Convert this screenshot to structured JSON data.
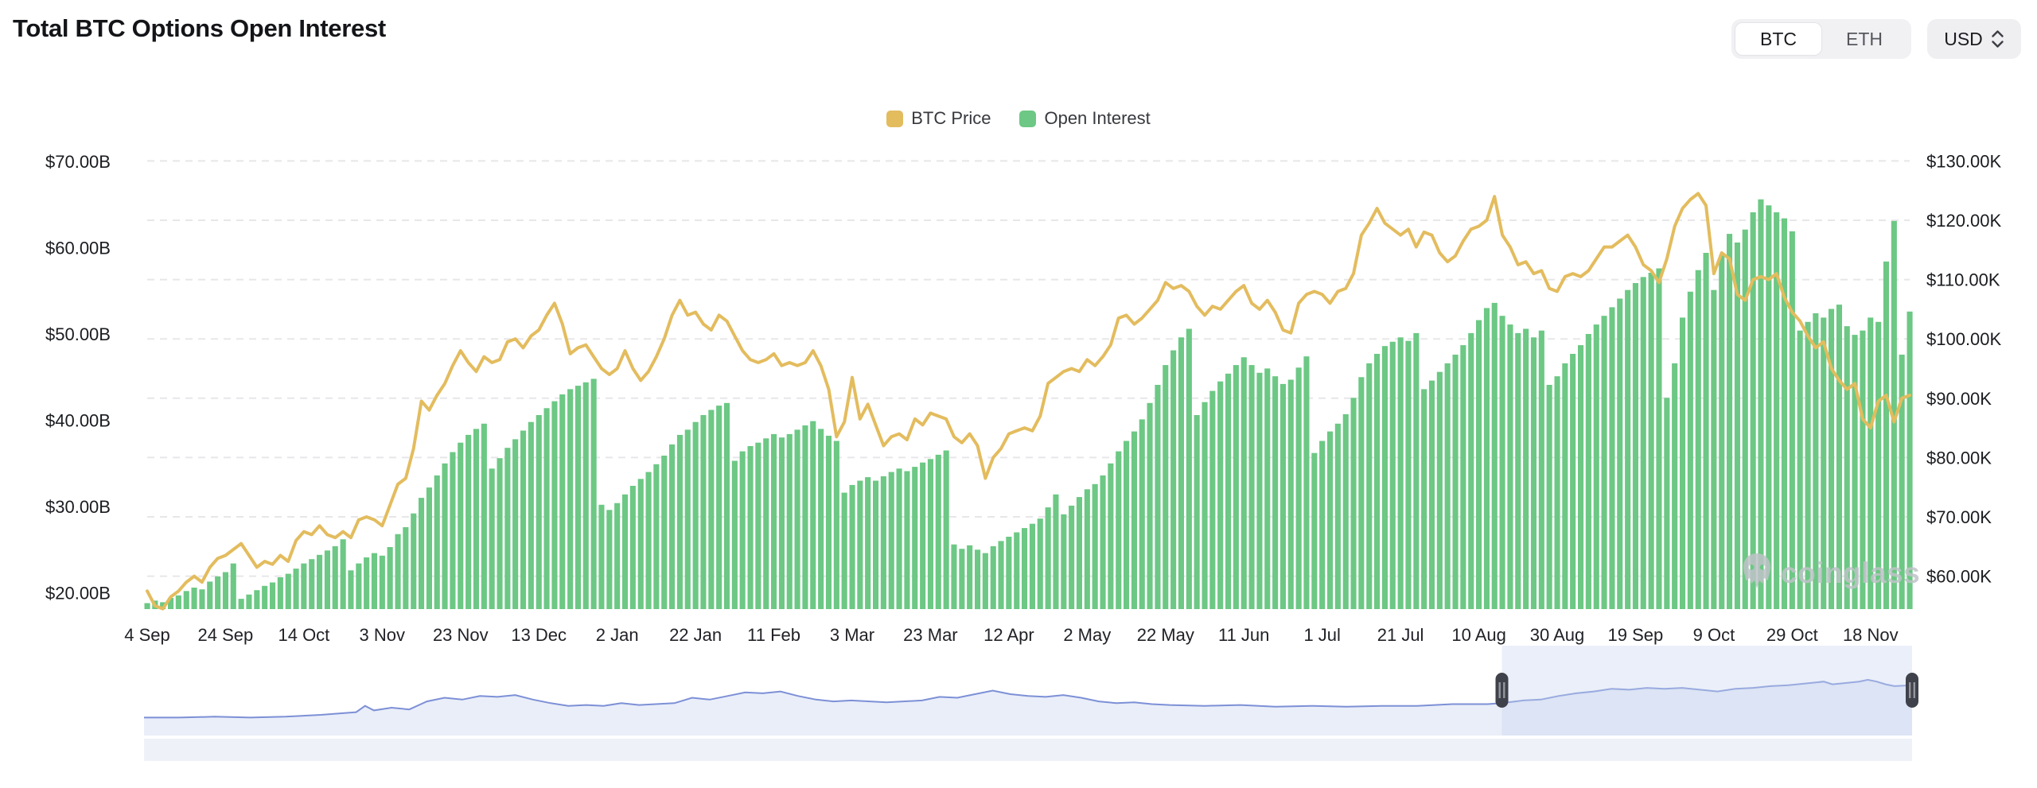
{
  "header": {
    "title": "Total BTC Options Open Interest"
  },
  "controls": {
    "asset_toggle": {
      "options": [
        "BTC",
        "ETH"
      ],
      "selected": "BTC"
    },
    "currency_select": {
      "value": "USD"
    }
  },
  "legend": [
    {
      "label": "BTC Price",
      "color": "#e3bc5e"
    },
    {
      "label": "Open Interest",
      "color": "#6cc884"
    }
  ],
  "watermark": {
    "text": "coinglass"
  },
  "chart_data": {
    "type": "bar+line",
    "title": "Total BTC Options Open Interest",
    "start_date": "2024-09-04",
    "end_date": "2025-11-28",
    "step_days": 2,
    "grid": "dashed horizontal at right-axis ticks",
    "legend_position": "top-center",
    "x_tick_labels": [
      "4 Sep",
      "24 Sep",
      "14 Oct",
      "3 Nov",
      "23 Nov",
      "13 Dec",
      "2 Jan",
      "22 Jan",
      "11 Feb",
      "3 Mar",
      "23 Mar",
      "12 Apr",
      "2 May",
      "22 May",
      "11 Jun",
      "1 Jul",
      "21 Jul",
      "10 Aug",
      "30 Aug",
      "19 Sep",
      "9 Oct",
      "29 Oct",
      "18 Nov"
    ],
    "x_tick_interval_days": 20,
    "left_axis": {
      "unit": "USD billions",
      "labels": [
        "$70.00B",
        "$60.00B",
        "$50.00B",
        "$40.00B",
        "$30.00B",
        "$20.00B"
      ],
      "values": [
        70,
        60,
        50,
        40,
        30,
        20
      ],
      "min": 18.2,
      "max": 71.9
    },
    "right_axis": {
      "unit": "USD thousands",
      "labels": [
        "$130.00K",
        "$120.00K",
        "$110.00K",
        "$100.00K",
        "$90.00K",
        "$80.00K",
        "$70.00K",
        "$60.00K"
      ],
      "values": [
        130,
        120,
        110,
        100,
        90,
        80,
        70,
        60
      ],
      "min": 54.4,
      "max": 130.3
    },
    "series": [
      {
        "name": "Open Interest",
        "type": "bar",
        "axis": "left",
        "unit": "$B",
        "color": "#6cc884",
        "values": [
          18.8,
          19.1,
          18.9,
          19.4,
          19.7,
          20.2,
          20.6,
          20.4,
          21.3,
          21.9,
          22.4,
          23.4,
          19.3,
          19.8,
          20.3,
          20.8,
          21.2,
          21.8,
          22.2,
          22.8,
          23.4,
          23.9,
          24.4,
          24.9,
          25.4,
          26.2,
          22.6,
          23.4,
          24.1,
          24.6,
          24.3,
          25.3,
          26.8,
          27.6,
          29.2,
          31.0,
          32.2,
          33.6,
          35.0,
          36.3,
          37.4,
          38.3,
          39.0,
          39.6,
          34.4,
          35.6,
          36.8,
          37.8,
          38.8,
          39.8,
          40.6,
          41.4,
          42.2,
          43.0,
          43.6,
          44.0,
          44.4,
          44.8,
          30.2,
          29.6,
          30.4,
          31.4,
          32.4,
          33.2,
          34.0,
          34.9,
          35.9,
          37.2,
          38.3,
          38.9,
          39.8,
          40.6,
          41.2,
          41.7,
          42.0,
          35.3,
          36.4,
          37.0,
          37.4,
          37.9,
          38.4,
          38.0,
          38.4,
          38.9,
          39.4,
          39.9,
          39.0,
          38.2,
          37.6,
          31.6,
          32.5,
          33.0,
          33.4,
          33.0,
          33.5,
          34.0,
          34.4,
          34.1,
          34.6,
          35.1,
          35.5,
          36.0,
          36.5,
          25.6,
          25.1,
          25.5,
          25.0,
          24.6,
          25.4,
          26.0,
          26.5,
          27.0,
          27.5,
          28.0,
          28.6,
          29.9,
          31.4,
          29.1,
          30.1,
          31.1,
          32.0,
          32.6,
          33.6,
          35.0,
          36.4,
          37.6,
          38.7,
          40.1,
          42.0,
          44.1,
          46.4,
          48.1,
          49.6,
          50.6,
          40.6,
          42.1,
          43.4,
          44.5,
          45.4,
          46.4,
          47.3,
          46.4,
          45.5,
          46.0,
          45.1,
          44.2,
          44.7,
          46.1,
          47.4,
          36.2,
          37.6,
          38.7,
          39.6,
          40.7,
          42.6,
          45.0,
          46.6,
          47.7,
          48.6,
          49.1,
          49.6,
          49.2,
          50.1,
          43.6,
          44.6,
          45.6,
          46.6,
          47.6,
          48.7,
          50.1,
          51.6,
          53.0,
          53.6,
          52.1,
          51.1,
          50.1,
          50.6,
          49.6,
          50.4,
          44.1,
          45.1,
          46.6,
          47.7,
          48.7,
          50.0,
          51.1,
          52.1,
          53.1,
          54.1,
          55.1,
          55.9,
          56.6,
          57.1,
          57.6,
          42.6,
          46.6,
          51.9,
          54.9,
          57.4,
          59.4,
          55.1,
          59.1,
          61.6,
          60.6,
          62.1,
          64.1,
          65.6,
          64.9,
          64.1,
          63.4,
          61.9,
          50.4,
          51.4,
          52.4,
          51.9,
          52.9,
          53.4,
          50.9,
          49.9,
          50.4,
          51.9,
          51.4,
          58.4,
          63.1,
          47.6,
          52.6
        ]
      },
      {
        "name": "BTC Price",
        "type": "line",
        "axis": "right",
        "unit": "$K",
        "color": "#e3bc5e",
        "values": [
          57.5,
          55.0,
          54.5,
          56.5,
          57.5,
          59.0,
          60.0,
          59.0,
          61.5,
          63.0,
          63.5,
          64.5,
          65.5,
          63.5,
          61.5,
          62.5,
          62.0,
          63.5,
          62.5,
          66.0,
          67.5,
          67.0,
          68.5,
          67.0,
          66.5,
          67.5,
          66.5,
          69.5,
          70.0,
          69.5,
          68.5,
          72.0,
          75.5,
          76.5,
          81.5,
          89.5,
          88.0,
          90.5,
          92.5,
          95.5,
          98.0,
          96.0,
          94.5,
          97.0,
          96.0,
          96.5,
          99.5,
          100.0,
          98.5,
          100.5,
          101.5,
          104.0,
          106.0,
          102.5,
          97.5,
          98.5,
          99.0,
          97.0,
          95.0,
          94.0,
          95.0,
          98.0,
          95.0,
          93.0,
          94.5,
          97.0,
          100.0,
          104.0,
          106.5,
          104.0,
          104.5,
          102.5,
          101.5,
          104.0,
          103.0,
          100.5,
          98.0,
          96.5,
          96.0,
          96.5,
          97.5,
          95.5,
          96.0,
          95.5,
          96.0,
          98.0,
          95.5,
          91.5,
          83.5,
          86.0,
          93.5,
          86.5,
          89.0,
          85.5,
          82.0,
          83.5,
          84.0,
          83.0,
          86.5,
          85.5,
          87.5,
          87.0,
          86.5,
          83.5,
          82.5,
          84.0,
          82.0,
          76.5,
          80.0,
          81.5,
          84.0,
          84.5,
          85.0,
          84.5,
          87.0,
          92.5,
          93.5,
          94.5,
          95.0,
          94.5,
          96.5,
          95.5,
          97.0,
          99.0,
          103.5,
          104.0,
          102.5,
          103.5,
          105.0,
          106.5,
          109.5,
          108.5,
          109.0,
          108.0,
          105.5,
          104.0,
          105.5,
          105.0,
          106.5,
          108.0,
          109.0,
          106.0,
          105.0,
          106.5,
          104.5,
          101.5,
          101.0,
          106.0,
          107.5,
          108.0,
          107.5,
          106.0,
          108.0,
          108.5,
          111.0,
          117.5,
          119.5,
          122.0,
          119.5,
          118.5,
          117.5,
          118.5,
          115.5,
          118.0,
          117.5,
          114.5,
          113.0,
          114.0,
          116.5,
          118.5,
          119.0,
          120.0,
          124.0,
          117.5,
          115.5,
          112.5,
          113.0,
          111.0,
          111.5,
          108.5,
          108.0,
          110.5,
          111.0,
          110.5,
          111.5,
          113.5,
          115.5,
          115.5,
          116.5,
          117.5,
          115.5,
          112.5,
          111.5,
          109.5,
          113.5,
          119.0,
          122.0,
          123.5,
          124.5,
          122.5,
          111.0,
          114.5,
          113.5,
          107.5,
          106.5,
          110.0,
          110.5,
          110.0,
          111.0,
          107.0,
          104.5,
          103.0,
          100.5,
          98.5,
          99.5,
          95.0,
          93.0,
          91.5,
          92.5,
          86.5,
          85.0,
          89.5,
          90.5,
          86.0,
          90.0,
          90.5
        ]
      }
    ],
    "navigator": {
      "selection_start_frac": 0.768,
      "selection_end_frac": 1.0,
      "line_color": "#7d90d6",
      "area_color": "#e9eef9",
      "selection_color": "#c9d4f0",
      "profile": [
        [
          0,
          0.2
        ],
        [
          0.02,
          0.2
        ],
        [
          0.04,
          0.21
        ],
        [
          0.06,
          0.2
        ],
        [
          0.08,
          0.21
        ],
        [
          0.1,
          0.23
        ],
        [
          0.12,
          0.26
        ],
        [
          0.125,
          0.33
        ],
        [
          0.13,
          0.28
        ],
        [
          0.14,
          0.31
        ],
        [
          0.15,
          0.29
        ],
        [
          0.16,
          0.38
        ],
        [
          0.17,
          0.42
        ],
        [
          0.18,
          0.4
        ],
        [
          0.19,
          0.44
        ],
        [
          0.2,
          0.43
        ],
        [
          0.21,
          0.45
        ],
        [
          0.22,
          0.4
        ],
        [
          0.23,
          0.36
        ],
        [
          0.24,
          0.33
        ],
        [
          0.25,
          0.34
        ],
        [
          0.26,
          0.33
        ],
        [
          0.27,
          0.36
        ],
        [
          0.28,
          0.34
        ],
        [
          0.3,
          0.36
        ],
        [
          0.31,
          0.42
        ],
        [
          0.32,
          0.4
        ],
        [
          0.33,
          0.44
        ],
        [
          0.34,
          0.48
        ],
        [
          0.35,
          0.47
        ],
        [
          0.36,
          0.49
        ],
        [
          0.37,
          0.44
        ],
        [
          0.38,
          0.4
        ],
        [
          0.39,
          0.38
        ],
        [
          0.4,
          0.39
        ],
        [
          0.42,
          0.37
        ],
        [
          0.44,
          0.39
        ],
        [
          0.45,
          0.43
        ],
        [
          0.46,
          0.42
        ],
        [
          0.47,
          0.46
        ],
        [
          0.48,
          0.5
        ],
        [
          0.49,
          0.46
        ],
        [
          0.5,
          0.44
        ],
        [
          0.51,
          0.43
        ],
        [
          0.52,
          0.45
        ],
        [
          0.53,
          0.42
        ],
        [
          0.54,
          0.38
        ],
        [
          0.55,
          0.36
        ],
        [
          0.56,
          0.37
        ],
        [
          0.57,
          0.35
        ],
        [
          0.58,
          0.34
        ],
        [
          0.6,
          0.33
        ],
        [
          0.62,
          0.34
        ],
        [
          0.64,
          0.32
        ],
        [
          0.66,
          0.33
        ],
        [
          0.68,
          0.32
        ],
        [
          0.7,
          0.33
        ],
        [
          0.72,
          0.33
        ],
        [
          0.74,
          0.35
        ],
        [
          0.76,
          0.35
        ],
        [
          0.768,
          0.36
        ],
        [
          0.78,
          0.39
        ],
        [
          0.79,
          0.4
        ],
        [
          0.8,
          0.44
        ],
        [
          0.81,
          0.47
        ],
        [
          0.82,
          0.49
        ],
        [
          0.83,
          0.52
        ],
        [
          0.84,
          0.51
        ],
        [
          0.85,
          0.53
        ],
        [
          0.86,
          0.52
        ],
        [
          0.87,
          0.53
        ],
        [
          0.88,
          0.51
        ],
        [
          0.89,
          0.49
        ],
        [
          0.9,
          0.52
        ],
        [
          0.91,
          0.53
        ],
        [
          0.92,
          0.55
        ],
        [
          0.93,
          0.56
        ],
        [
          0.94,
          0.58
        ],
        [
          0.95,
          0.6
        ],
        [
          0.955,
          0.57
        ],
        [
          0.96,
          0.58
        ],
        [
          0.97,
          0.6
        ],
        [
          0.975,
          0.62
        ],
        [
          0.98,
          0.6
        ],
        [
          0.985,
          0.57
        ],
        [
          0.99,
          0.55
        ],
        [
          1.0,
          0.56
        ]
      ]
    }
  }
}
